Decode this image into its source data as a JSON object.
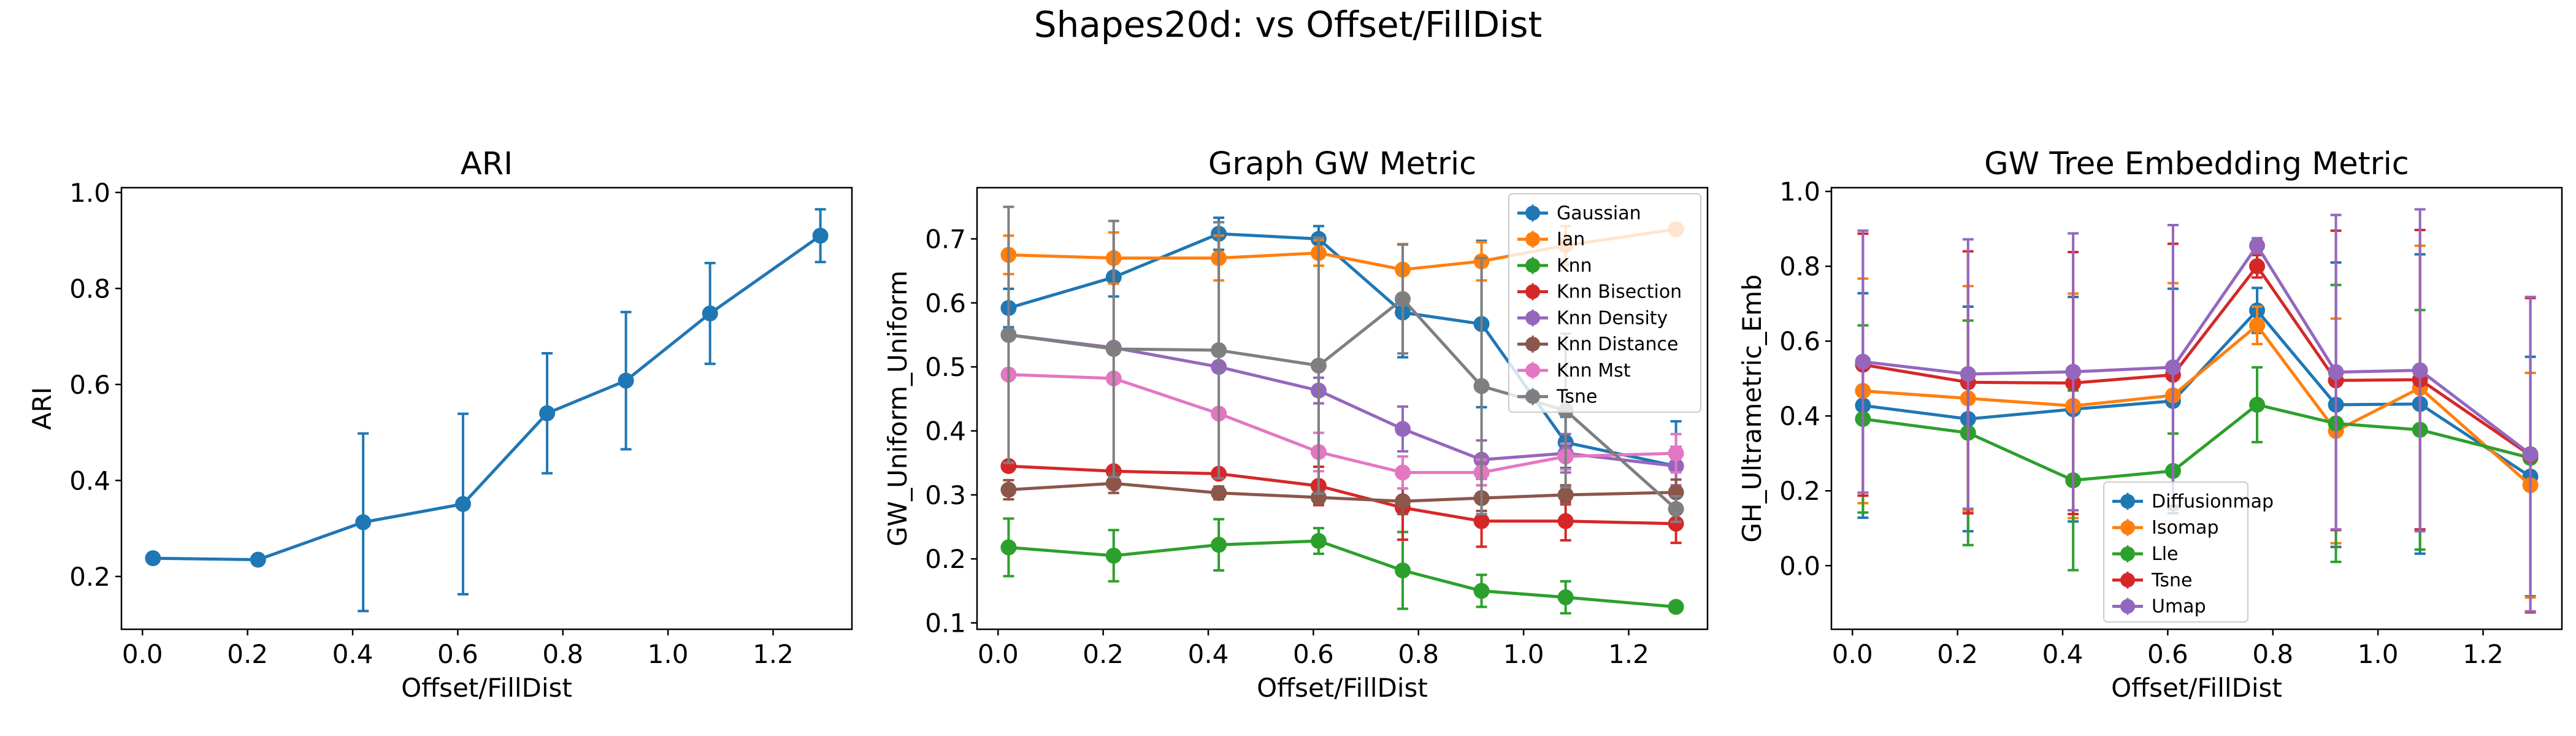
{
  "figure": {
    "suptitle": "Shapes20d: vs Offset/FillDist"
  },
  "palette": [
    "#1f77b4",
    "#ff7f0e",
    "#2ca02c",
    "#d62728",
    "#9467bd",
    "#8c564b",
    "#e377c2",
    "#7f7f7f"
  ],
  "chart_data": [
    {
      "type": "line",
      "title": "ARI",
      "xlabel": "Offset/FillDist",
      "ylabel": "ARI",
      "xlim": [
        -0.04,
        1.35
      ],
      "ylim": [
        0.09,
        1.01
      ],
      "xticks": [
        0.0,
        0.2,
        0.4,
        0.6,
        0.8,
        1.0,
        1.2
      ],
      "xticklabels": [
        "0.0",
        "0.2",
        "0.4",
        "0.6",
        "0.8",
        "1.0",
        "1.2"
      ],
      "yticks": [
        0.2,
        0.4,
        0.6,
        0.8,
        1.0
      ],
      "yticklabels": [
        "0.2",
        "0.4",
        "0.6",
        "0.8",
        "1.0"
      ],
      "error_bars": true,
      "legend": null,
      "x": [
        0.02,
        0.22,
        0.42,
        0.61,
        0.77,
        0.92,
        1.08,
        1.29
      ],
      "series": [
        {
          "values": [
            0.238,
            0.235,
            0.313,
            0.351,
            0.54,
            0.608,
            0.748,
            0.91
          ],
          "err": [
            0.0,
            0.0,
            0.185,
            0.188,
            0.125,
            0.143,
            0.105,
            0.055
          ]
        }
      ]
    },
    {
      "type": "line",
      "title": "Graph GW Metric",
      "xlabel": "Offset/FillDist",
      "ylabel": "GW_Uniform_Uniform",
      "xlim": [
        -0.04,
        1.35
      ],
      "ylim": [
        0.09,
        0.78
      ],
      "xticks": [
        0.0,
        0.2,
        0.4,
        0.6,
        0.8,
        1.0,
        1.2
      ],
      "xticklabels": [
        "0.0",
        "0.2",
        "0.4",
        "0.6",
        "0.8",
        "1.0",
        "1.2"
      ],
      "yticks": [
        0.1,
        0.2,
        0.3,
        0.4,
        0.5,
        0.6,
        0.7
      ],
      "yticklabels": [
        "0.1",
        "0.2",
        "0.3",
        "0.4",
        "0.5",
        "0.6",
        "0.7"
      ],
      "error_bars": true,
      "legend": "top-right",
      "x": [
        0.02,
        0.22,
        0.42,
        0.61,
        0.77,
        0.92,
        1.08,
        1.29
      ],
      "series": [
        {
          "name": "Gaussian",
          "values": [
            0.592,
            0.64,
            0.708,
            0.7,
            0.585,
            0.567,
            0.382,
            0.345
          ],
          "err": [
            0.03,
            0.03,
            0.025,
            0.02,
            0.07,
            0.13,
            0.04,
            0.07
          ]
        },
        {
          "name": "Ian",
          "values": [
            0.675,
            0.67,
            0.67,
            0.678,
            0.652,
            0.665,
            0.69,
            0.715
          ],
          "err": [
            0.03,
            0.04,
            0.035,
            0.02,
            0.04,
            0.03,
            0.03,
            0.0
          ]
        },
        {
          "name": "Knn",
          "values": [
            0.218,
            0.205,
            0.222,
            0.228,
            0.182,
            0.15,
            0.14,
            0.125
          ],
          "err": [
            0.045,
            0.04,
            0.04,
            0.02,
            0.06,
            0.025,
            0.025,
            0.0
          ]
        },
        {
          "name": "Knn Bisection",
          "values": [
            0.345,
            0.337,
            0.333,
            0.314,
            0.28,
            0.259,
            0.259,
            0.255
          ],
          "err": [
            0.0,
            0.0,
            0.0,
            0.03,
            0.05,
            0.04,
            0.03,
            0.03
          ]
        },
        {
          "name": "Knn Density",
          "values": [
            0.55,
            0.53,
            0.5,
            0.463,
            0.403,
            0.355,
            0.365,
            0.345
          ],
          "err": [
            0.0,
            0.0,
            0.0,
            0.02,
            0.035,
            0.03,
            0.03,
            0.03
          ]
        },
        {
          "name": "Knn Distance",
          "values": [
            0.308,
            0.318,
            0.303,
            0.296,
            0.29,
            0.295,
            0.3,
            0.304
          ],
          "err": [
            0.015,
            0.015,
            0.01,
            0.01,
            0.02,
            0.02,
            0.015,
            0.02
          ]
        },
        {
          "name": "Knn Mst",
          "values": [
            0.488,
            0.482,
            0.427,
            0.367,
            0.335,
            0.335,
            0.36,
            0.365
          ],
          "err": [
            0.0,
            0.0,
            0.0,
            0.03,
            0.025,
            0.02,
            0.02,
            0.03
          ]
        },
        {
          "name": "Tsne",
          "values": [
            0.55,
            0.528,
            0.526,
            0.502,
            0.606,
            0.47,
            0.432,
            0.278
          ],
          "err": [
            0.2,
            0.2,
            0.2,
            0.2,
            0.085,
            0.2,
            0.12,
            0.02
          ]
        }
      ]
    },
    {
      "type": "line",
      "title": "GW Tree Embedding Metric",
      "xlabel": "Offset/FillDist",
      "ylabel": "GH_Ultrametric_Emb",
      "xlim": [
        -0.04,
        1.35
      ],
      "ylim": [
        -0.17,
        1.01
      ],
      "xticks": [
        0.0,
        0.2,
        0.4,
        0.6,
        0.8,
        1.0,
        1.2
      ],
      "xticklabels": [
        "0.0",
        "0.2",
        "0.4",
        "0.6",
        "0.8",
        "1.0",
        "1.2"
      ],
      "yticks": [
        0.0,
        0.2,
        0.4,
        0.6,
        0.8,
        1.0
      ],
      "yticklabels": [
        "0.0",
        "0.2",
        "0.4",
        "0.6",
        "0.8",
        "1.0"
      ],
      "error_bars": true,
      "legend": "bottom-center",
      "x": [
        0.02,
        0.22,
        0.42,
        0.61,
        0.77,
        0.92,
        1.08,
        1.29
      ],
      "series": [
        {
          "name": "Diffusionmap",
          "values": [
            0.428,
            0.392,
            0.418,
            0.44,
            0.682,
            0.43,
            0.432,
            0.238
          ],
          "err": [
            0.3,
            0.3,
            0.3,
            0.3,
            0.06,
            0.38,
            0.4,
            0.32
          ]
        },
        {
          "name": "Isomap",
          "values": [
            0.467,
            0.447,
            0.427,
            0.455,
            0.642,
            0.36,
            0.475,
            0.215
          ],
          "err": [
            0.3,
            0.3,
            0.3,
            0.3,
            0.05,
            0.3,
            0.38,
            0.3
          ]
        },
        {
          "name": "Lle",
          "values": [
            0.392,
            0.355,
            0.228,
            0.253,
            0.43,
            0.38,
            0.363,
            0.288
          ],
          "err": [
            0.25,
            0.3,
            0.24,
            0.1,
            0.1,
            0.37,
            0.32,
            0.0
          ]
        },
        {
          "name": "Tsne",
          "values": [
            0.537,
            0.49,
            0.488,
            0.51,
            0.8,
            0.495,
            0.497,
            0.295
          ],
          "err": [
            0.35,
            0.35,
            0.35,
            0.35,
            0.03,
            0.4,
            0.4,
            0.42
          ]
        },
        {
          "name": "Umap",
          "values": [
            0.545,
            0.512,
            0.518,
            0.53,
            0.855,
            0.517,
            0.522,
            0.298
          ],
          "err": [
            0.35,
            0.36,
            0.37,
            0.38,
            0.02,
            0.42,
            0.43,
            0.42
          ]
        }
      ]
    }
  ]
}
